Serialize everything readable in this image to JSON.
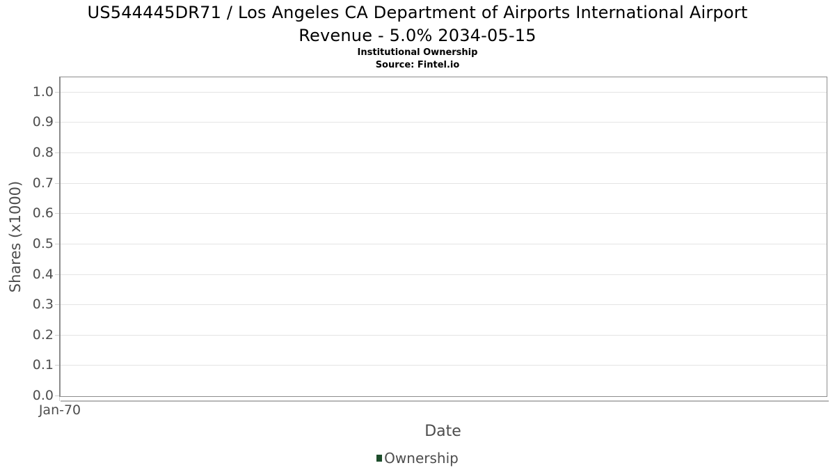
{
  "header": {
    "title_lines": [
      "US544445DR71 / Los Angeles CA Department of Airports International Airport",
      "Revenue - 5.0% 2034-05-15"
    ],
    "subtitle": "Institutional Ownership",
    "source": "Source: Fintel.io"
  },
  "chart_data": {
    "type": "line",
    "title": "US544445DR71 / Los Angeles CA Department of Airports International Airport Revenue - 5.0% 2034-05-15",
    "subtitle": "Institutional Ownership",
    "source": "Source: Fintel.io",
    "xlabel": "Date",
    "ylabel": "Shares (x1000)",
    "xticks": [
      "Jan-70"
    ],
    "yticks": [
      "0.0",
      "0.1",
      "0.2",
      "0.3",
      "0.4",
      "0.5",
      "0.6",
      "0.7",
      "0.8",
      "0.9",
      "1.0"
    ],
    "ylim": [
      0,
      1.05
    ],
    "grid": "horizontal-only",
    "legend_position": "bottom-center",
    "series": [
      {
        "name": "Ownership",
        "color": "#1d4d2b",
        "x": [],
        "values": []
      }
    ]
  },
  "colors": {
    "series_green": "#1d4d2b",
    "grid_line": "#e4e4e4",
    "plot_border": "#8c8c8c",
    "axis_text": "#4d4d4d",
    "title_text": "#000000",
    "shadow": "#b7b7b7",
    "background": "#ffffff"
  }
}
